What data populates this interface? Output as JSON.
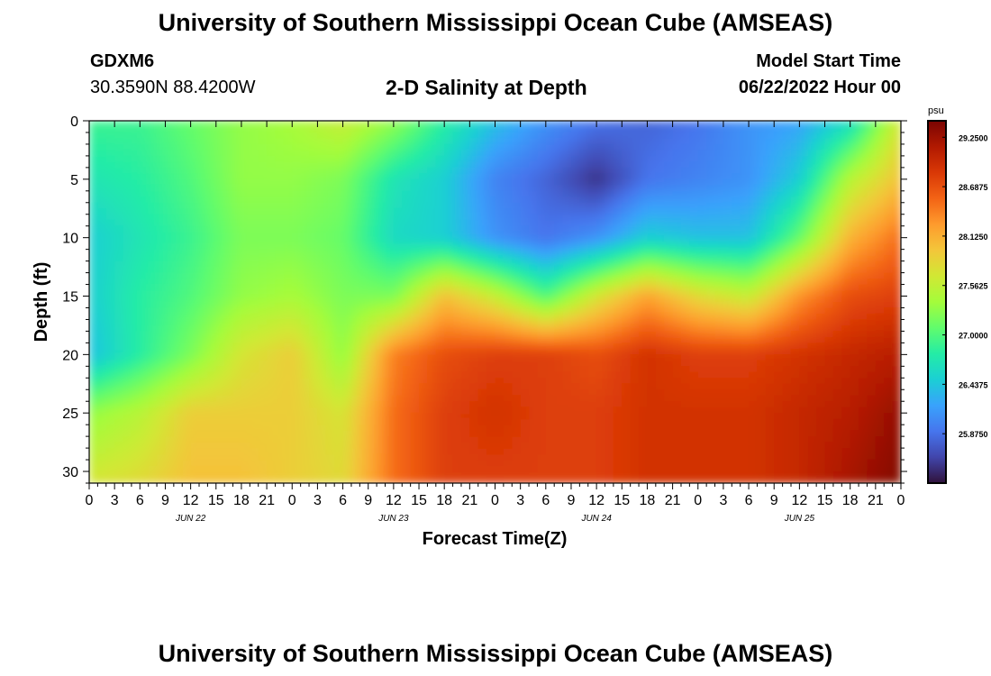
{
  "header": {
    "title": "University of Southern Mississippi Ocean Cube (AMSEAS)",
    "station_id": "GDXM6",
    "station_coords": "30.3590N  88.4200W",
    "subtitle": "2-D Salinity at Depth",
    "model_start_label": "Model Start Time",
    "model_start_value": "06/22/2022 Hour 00"
  },
  "footer": {
    "repeated_title": "University of Southern Mississippi Ocean Cube (AMSEAS)"
  },
  "chart_data": {
    "type": "heatmap",
    "title": "2-D Salinity at Depth",
    "xlabel": "Forecast Time(Z)",
    "ylabel": "Depth (ft)",
    "x_hours_range": [
      0,
      96
    ],
    "x_tick_labels": [
      "0",
      "3",
      "6",
      "9",
      "12",
      "15",
      "18",
      "21",
      "0",
      "3",
      "6",
      "9",
      "12",
      "15",
      "18",
      "21",
      "0",
      "3",
      "6",
      "9",
      "12",
      "15",
      "18",
      "21",
      "0",
      "3",
      "6",
      "9",
      "12",
      "15",
      "18",
      "21",
      "0"
    ],
    "x_day_labels": [
      {
        "label": "JUN 22",
        "hour": 12
      },
      {
        "label": "JUN 23",
        "hour": 36
      },
      {
        "label": "JUN 24",
        "hour": 60
      },
      {
        "label": "JUN 25",
        "hour": 84
      }
    ],
    "ylim": [
      0,
      31
    ],
    "y_ticks": [
      0,
      5,
      10,
      15,
      20,
      25,
      30
    ],
    "y_tick_labels": [
      "0",
      "5",
      "10",
      "15",
      "20",
      "25",
      "30"
    ],
    "colorbar": {
      "unit": "psu",
      "min": 25.3125,
      "max": 29.4375,
      "tick_values": [
        29.25,
        28.6875,
        28.125,
        27.5625,
        27.0,
        26.4375,
        25.875
      ],
      "tick_labels": [
        "29.2500",
        "28.6875",
        "28.1250",
        "27.5625",
        "27.0000",
        "26.4375",
        "25.8750"
      ],
      "colors": [
        "#30123b",
        "#4145ab",
        "#4675ed",
        "#39a2fc",
        "#1bcfd4",
        "#24eca6",
        "#61fc6c",
        "#a4fc3b",
        "#d1e834",
        "#f3c63a",
        "#fe9b2d",
        "#f36315",
        "#d93806",
        "#b11901",
        "#7a0402"
      ]
    },
    "depths_ft": [
      0,
      5,
      10,
      15,
      20,
      25,
      31
    ],
    "hours": [
      0,
      6,
      12,
      18,
      24,
      30,
      36,
      42,
      48,
      54,
      60,
      66,
      72,
      78,
      84,
      90,
      96
    ],
    "salinity_psu": [
      [
        26.9,
        26.9,
        27.1,
        27.3,
        27.4,
        27.6,
        27.3,
        26.8,
        26.4,
        26.1,
        25.9,
        25.8,
        25.9,
        26.1,
        26.2,
        26.6,
        27.7
      ],
      [
        26.7,
        26.8,
        27.0,
        27.3,
        27.3,
        27.2,
        26.7,
        26.5,
        26.0,
        25.8,
        25.5,
        25.9,
        26.0,
        26.1,
        26.5,
        27.5,
        28.0
      ],
      [
        26.5,
        26.7,
        26.9,
        27.2,
        27.2,
        27.1,
        26.6,
        26.5,
        26.1,
        25.9,
        26.1,
        26.5,
        26.4,
        26.4,
        27.1,
        28.1,
        28.5
      ],
      [
        26.5,
        26.8,
        27.0,
        27.3,
        27.4,
        27.2,
        27.2,
        28.0,
        27.6,
        27.0,
        27.7,
        28.2,
        27.8,
        27.6,
        28.3,
        28.7,
        28.8
      ],
      [
        26.4,
        26.8,
        27.2,
        27.7,
        27.9,
        27.3,
        28.4,
        28.7,
        28.8,
        28.8,
        28.7,
        28.9,
        28.8,
        28.8,
        28.9,
        29.0,
        29.1
      ],
      [
        27.3,
        27.5,
        27.9,
        27.9,
        27.9,
        27.7,
        28.5,
        28.8,
        28.9,
        28.8,
        28.8,
        28.9,
        28.9,
        28.9,
        29.0,
        29.1,
        29.3
      ],
      [
        27.7,
        27.8,
        28.0,
        28.0,
        27.9,
        27.8,
        28.5,
        28.8,
        28.8,
        28.8,
        28.8,
        28.9,
        28.9,
        28.9,
        29.0,
        29.2,
        29.4
      ]
    ]
  }
}
